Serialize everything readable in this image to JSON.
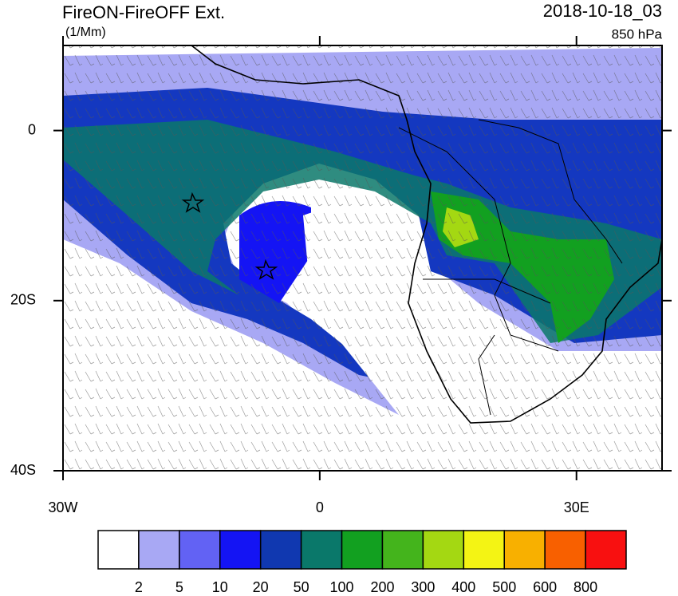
{
  "header": {
    "title": "FireON-FireOFF Ext.",
    "units": "(1/Mm)",
    "date": "2018-10-18_03",
    "level": "850 hPa"
  },
  "map": {
    "lon_range": [
      -30,
      40
    ],
    "lat_range": [
      -40,
      10
    ],
    "lon_ticks": [
      {
        "value": -30,
        "label": "30W"
      },
      {
        "value": 0,
        "label": "0"
      },
      {
        "value": 30,
        "label": "30E"
      }
    ],
    "lat_ticks": [
      {
        "value": 0,
        "label": "0"
      },
      {
        "value": -20,
        "label": "20S"
      },
      {
        "value": -40,
        "label": "40S"
      }
    ]
  },
  "colorbar": {
    "colors": [
      "#ffffff",
      "#a8a8f4",
      "#6262f4",
      "#1414f4",
      "#1038b0",
      "#0a786a",
      "#12a020",
      "#44b41c",
      "#a4d812",
      "#f4f414",
      "#f8b000",
      "#f86000",
      "#f81010"
    ],
    "levels": [
      2,
      5,
      10,
      20,
      50,
      100,
      200,
      300,
      400,
      500,
      600,
      800
    ]
  }
}
